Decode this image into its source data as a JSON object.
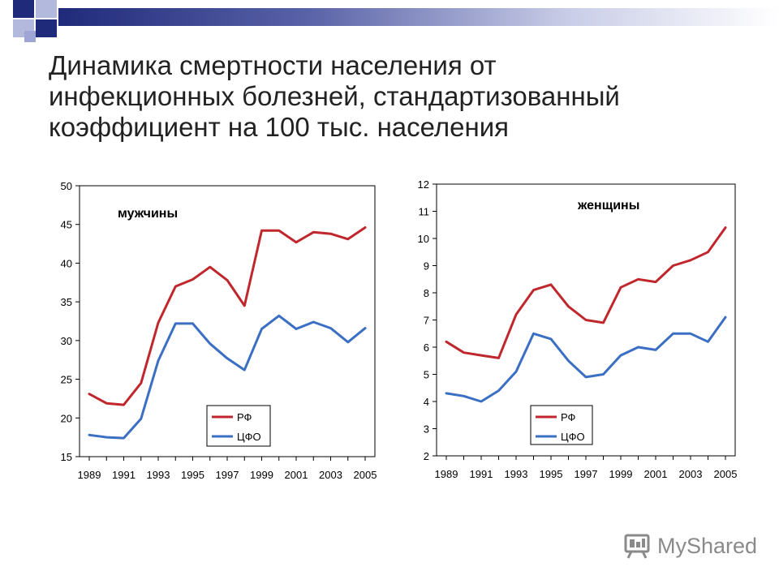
{
  "slide": {
    "title_lines": [
      "Динамика смертности населения от",
      "инфекционных болезней, стандартизованный",
      "коэффициент на 100 тыс. населения"
    ],
    "accent_colors": {
      "dark_blue": "#1f2a7a",
      "light_blue": "#9fa6d6"
    }
  },
  "watermark": {
    "text": "MyShared",
    "icon": "presentation-board-icon",
    "color": "#8a8a8a"
  },
  "chart_data": [
    {
      "type": "line",
      "label": "мужчины",
      "x": [
        1989,
        1990,
        1991,
        1992,
        1993,
        1994,
        1995,
        1996,
        1997,
        1998,
        1999,
        2000,
        2001,
        2002,
        2003,
        2004,
        2005
      ],
      "x_ticks": [
        "1989",
        "1991",
        "1993",
        "1995",
        "1997",
        "1999",
        "2001",
        "2003",
        "2005"
      ],
      "ylim": [
        15,
        50
      ],
      "y_ticks": [
        15,
        20,
        25,
        30,
        35,
        40,
        45,
        50
      ],
      "grid": false,
      "legend_position": "bottom-right",
      "series": [
        {
          "name": "РФ",
          "color": "#c0272d",
          "values": [
            23.1,
            21.9,
            21.7,
            24.5,
            32.3,
            37.0,
            37.9,
            39.5,
            37.8,
            34.5,
            44.2,
            44.2,
            42.7,
            44.0,
            43.8,
            43.1,
            44.6
          ]
        },
        {
          "name": "ЦФО",
          "color": "#3a6fc4",
          "values": [
            17.8,
            17.5,
            17.4,
            19.9,
            27.4,
            32.2,
            32.2,
            29.6,
            27.7,
            26.2,
            31.5,
            33.2,
            31.5,
            32.4,
            31.6,
            29.8,
            31.6
          ]
        }
      ]
    },
    {
      "type": "line",
      "label": "женщины",
      "x": [
        1989,
        1990,
        1991,
        1992,
        1993,
        1994,
        1995,
        1996,
        1997,
        1998,
        1999,
        2000,
        2001,
        2002,
        2003,
        2004,
        2005
      ],
      "x_ticks": [
        "1989",
        "1991",
        "1993",
        "1995",
        "1997",
        "1999",
        "2001",
        "2003",
        "2005"
      ],
      "ylim": [
        2,
        12
      ],
      "y_ticks": [
        2,
        3,
        4,
        5,
        6,
        7,
        8,
        9,
        10,
        11,
        12
      ],
      "grid": false,
      "legend_position": "bottom-right",
      "series": [
        {
          "name": "РФ",
          "color": "#c0272d",
          "values": [
            6.2,
            5.8,
            5.7,
            5.6,
            7.2,
            8.1,
            8.3,
            7.5,
            7.0,
            6.9,
            8.2,
            8.5,
            8.4,
            9.0,
            9.2,
            9.5,
            10.4
          ]
        },
        {
          "name": "ЦФО",
          "color": "#3a6fc4",
          "values": [
            4.3,
            4.2,
            4.0,
            4.4,
            5.1,
            6.5,
            6.3,
            5.5,
            4.9,
            5.0,
            5.7,
            6.0,
            5.9,
            6.5,
            6.5,
            6.2,
            7.1
          ]
        }
      ]
    }
  ]
}
